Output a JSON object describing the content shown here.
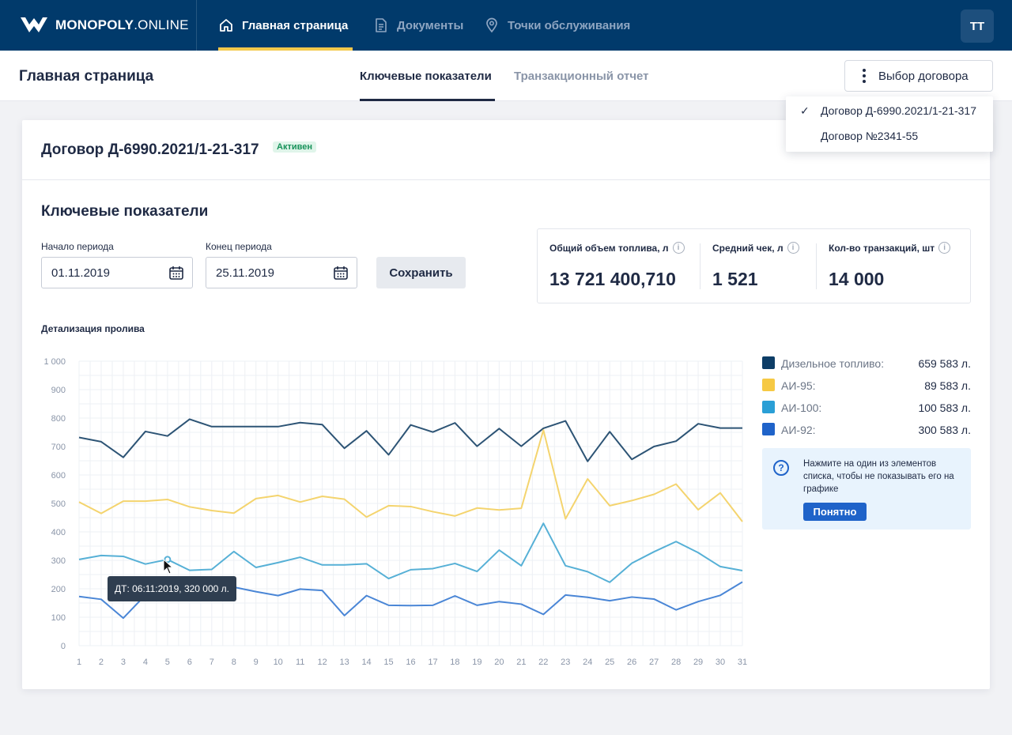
{
  "brand": {
    "name_bold": "MONOPOLY",
    "name_light": ".ONLINE"
  },
  "nav": [
    {
      "label": "Главная страница",
      "icon": "home-icon",
      "active": true
    },
    {
      "label": "Документы",
      "icon": "document-icon",
      "active": false
    },
    {
      "label": "Точки обслуживания",
      "icon": "map-pin-icon",
      "active": false
    }
  ],
  "user": {
    "initials": "ТТ"
  },
  "header": {
    "page_title": "Главная страница",
    "tabs": [
      {
        "label": "Ключевые показатели",
        "active": true
      },
      {
        "label": "Транзакционный отчет",
        "active": false
      }
    ],
    "contract_button": "Выбор договора"
  },
  "dropdown": {
    "items": [
      {
        "label": "Договор Д-6990.2021/1-21-317",
        "checked": true
      },
      {
        "label": "Договор №2341-55",
        "checked": false
      }
    ]
  },
  "card": {
    "contract_title": "Договор Д-6990.2021/1-21-317",
    "status_badge": "Активен",
    "section_title": "Ключевые показатели",
    "period_start_label": "Начало периода",
    "period_start_value": "01.11.2019",
    "period_end_label": "Конец периода",
    "period_end_value": "25.11.2019",
    "save_button": "Сохранить",
    "kpis": [
      {
        "label": "Общий объем топлива, л",
        "value": "13 721 400,710"
      },
      {
        "label": "Средний чек, л",
        "value": "1 521"
      },
      {
        "label": "Кол-во транзакций, шт",
        "value": "14 000"
      }
    ],
    "detail_title": "Детализация пролива"
  },
  "legend": [
    {
      "name": "Дизельное топливо:",
      "value": "659 583 л.",
      "color": "#0d3d66"
    },
    {
      "name": "АИ-95:",
      "value": "89 583 л.",
      "color": "#f6c944"
    },
    {
      "name": "АИ-100:",
      "value": "100 583 л.",
      "color": "#2a9fd6"
    },
    {
      "name": "АИ-92:",
      "value": "300 583 л.",
      "color": "#1f63c9"
    }
  ],
  "hint": {
    "text": "Нажмите на один из элементов списка, чтобы не показывать его на графике",
    "button": "Понятно"
  },
  "tooltip": {
    "text": "ДТ: 06:11:2019, 320 000 л."
  },
  "chart_data": {
    "type": "line",
    "title": "Детализация пролива",
    "x": [
      1,
      2,
      3,
      4,
      5,
      6,
      7,
      8,
      9,
      10,
      11,
      12,
      13,
      14,
      15,
      16,
      17,
      18,
      19,
      20,
      21,
      22,
      23,
      24,
      25,
      26,
      27,
      28,
      29,
      30,
      31
    ],
    "ylim": [
      0,
      1000
    ],
    "yticks": [
      0,
      100,
      200,
      300,
      400,
      500,
      600,
      700,
      800,
      900,
      1000
    ],
    "ytick_labels": [
      "0",
      "100",
      "200",
      "300",
      "400",
      "500",
      "600",
      "700",
      "800",
      "900",
      "1 000"
    ],
    "grid": true,
    "series": [
      {
        "name": "Дизельное топливо",
        "color": "#2d5475",
        "values": [
          732,
          717,
          662,
          753,
          737,
          796,
          770,
          770,
          770,
          770,
          784,
          777,
          694,
          755,
          671,
          776,
          751,
          783,
          701,
          763,
          701,
          764,
          790,
          648,
          752,
          655,
          700,
          719,
          780,
          765,
          765
        ]
      },
      {
        "name": "АИ-95",
        "color": "#f4d46e",
        "values": [
          505,
          465,
          508,
          508,
          514,
          488,
          475,
          466,
          517,
          528,
          505,
          525,
          515,
          452,
          492,
          489,
          471,
          456,
          484,
          477,
          483,
          758,
          446,
          586,
          492,
          510,
          532,
          568,
          478,
          537,
          436
        ]
      },
      {
        "name": "АИ-100",
        "color": "#56b0d6",
        "values": [
          303,
          317,
          314,
          287,
          303,
          265,
          268,
          331,
          275,
          292,
          311,
          284,
          284,
          288,
          236,
          267,
          271,
          289,
          261,
          336,
          281,
          430,
          281,
          260,
          223,
          290,
          330,
          366,
          327,
          278,
          264
        ]
      },
      {
        "name": "АИ-92",
        "color": "#4a86d6",
        "values": [
          173,
          163,
          97,
          178,
          212,
          218,
          211,
          206,
          190,
          176,
          199,
          194,
          106,
          176,
          142,
          141,
          142,
          175,
          142,
          155,
          146,
          110,
          178,
          170,
          158,
          171,
          164,
          126,
          155,
          177,
          224
        ]
      }
    ]
  }
}
